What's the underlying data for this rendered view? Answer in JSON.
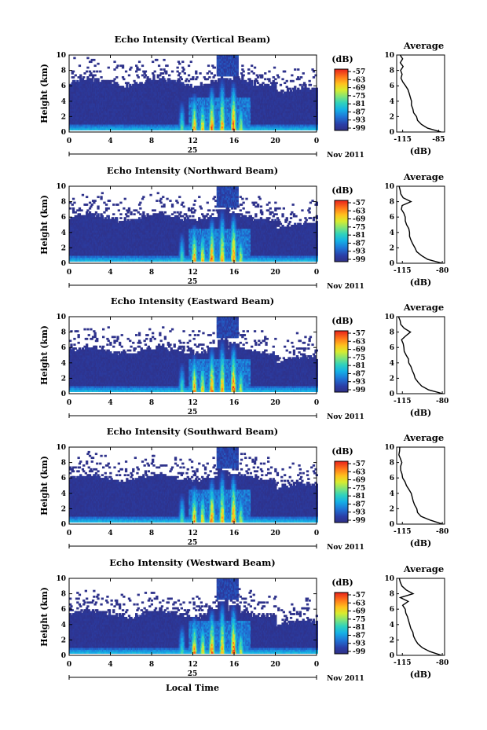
{
  "figure": {
    "xlabel": "Local Time",
    "date_label": "Nov 2011",
    "day_label": "25",
    "panel_ylabel": "Height (km)",
    "colorbar_unit": "(dB)",
    "avg_title": "Average",
    "avg_xlabel": "(dB)"
  },
  "chart_data": [
    {
      "type": "heatmap",
      "title": "Echo Intensity (Vertical Beam)",
      "ylabel": "Height (km)",
      "xlabel": "Local Time",
      "xlim": [
        0,
        24
      ],
      "xticks": [
        "0",
        "4",
        "8",
        "12",
        "16",
        "20",
        "0"
      ],
      "ylim": [
        0,
        10
      ],
      "yticks": [
        "0",
        "2",
        "4",
        "6",
        "8",
        "10"
      ],
      "colorbar": {
        "unit": "(dB)",
        "ticks": [
          "-57",
          "-63",
          "-69",
          "-75",
          "-81",
          "-87",
          "-93",
          "-99"
        ]
      },
      "profile": {
        "title": "Average",
        "xlabel": "(dB)",
        "xticks": [
          "-115",
          "-85"
        ],
        "xlim": [
          -120,
          -80
        ],
        "height_km": [
          0,
          0.5,
          1,
          1.5,
          2,
          2.5,
          3,
          3.5,
          4,
          4.5,
          5,
          5.5,
          6,
          6.5,
          7,
          7.5,
          8,
          8.5,
          9,
          9.5,
          10
        ],
        "db": [
          -82,
          -94,
          -99,
          -102,
          -104,
          -106,
          -106,
          -108,
          -107,
          -109,
          -110,
          -111,
          -113,
          -115,
          -116,
          -115,
          -117,
          -114,
          -117,
          -115,
          -117
        ]
      }
    },
    {
      "type": "heatmap",
      "title": "Echo Intensity (Northward Beam)",
      "ylabel": "Height (km)",
      "xlabel": "Local Time",
      "xlim": [
        0,
        24
      ],
      "xticks": [
        "0",
        "4",
        "8",
        "12",
        "16",
        "20",
        "0"
      ],
      "ylim": [
        0,
        10
      ],
      "yticks": [
        "0",
        "2",
        "4",
        "6",
        "8",
        "10"
      ],
      "colorbar": {
        "unit": "(dB)",
        "ticks": [
          "-57",
          "-63",
          "-69",
          "-75",
          "-81",
          "-87",
          "-93",
          "-99"
        ]
      },
      "profile": {
        "title": "Average",
        "xlabel": "(dB)",
        "xticks": [
          "-115",
          "-80"
        ],
        "xlim": [
          -120,
          -78
        ],
        "height_km": [
          0,
          0.5,
          1,
          1.5,
          2,
          2.5,
          3,
          3.5,
          4,
          4.5,
          5,
          5.5,
          6,
          6.5,
          7,
          7.5,
          8,
          8.5,
          9,
          9.5,
          10
        ],
        "db": [
          -80,
          -92,
          -99,
          -102,
          -104,
          -106,
          -108,
          -108,
          -109,
          -110,
          -111,
          -112,
          -112,
          -114,
          -116,
          -115,
          -108,
          -115,
          -116,
          -117,
          -118
        ]
      }
    },
    {
      "type": "heatmap",
      "title": "Echo Intensity (Eastward Beam)",
      "ylabel": "Height (km)",
      "xlabel": "Local Time",
      "xlim": [
        0,
        24
      ],
      "xticks": [
        "0",
        "4",
        "8",
        "12",
        "16",
        "20",
        "0"
      ],
      "ylim": [
        0,
        10
      ],
      "yticks": [
        "0",
        "2",
        "4",
        "6",
        "8",
        "10"
      ],
      "colorbar": {
        "unit": "(dB)",
        "ticks": [
          "-57",
          "-63",
          "-69",
          "-75",
          "-81",
          "-87",
          "-93",
          "-99"
        ]
      },
      "profile": {
        "title": "Average",
        "xlabel": "(dB)",
        "xticks": [
          "-115",
          "-80"
        ],
        "xlim": [
          -120,
          -78
        ],
        "height_km": [
          0,
          0.5,
          1,
          1.5,
          2,
          2.5,
          3,
          3.5,
          4,
          4.5,
          5,
          5.5,
          6,
          6.5,
          7,
          7.5,
          8,
          8.5,
          9,
          9.5,
          10
        ],
        "db": [
          -80,
          -92,
          -99,
          -102,
          -104,
          -105,
          -107,
          -108,
          -110,
          -110,
          -112,
          -113,
          -113,
          -115,
          -116,
          -112,
          -108,
          -113,
          -116,
          -117,
          -118
        ]
      }
    },
    {
      "type": "heatmap",
      "title": "Echo Intensity (Southward Beam)",
      "ylabel": "Height (km)",
      "xlabel": "Local Time",
      "xlim": [
        0,
        24
      ],
      "xticks": [
        "0",
        "4",
        "8",
        "12",
        "16",
        "20",
        "0"
      ],
      "ylim": [
        0,
        10
      ],
      "yticks": [
        "0",
        "2",
        "4",
        "6",
        "8",
        "10"
      ],
      "colorbar": {
        "unit": "(dB)",
        "ticks": [
          "-57",
          "-63",
          "-69",
          "-75",
          "-81",
          "-87",
          "-93",
          "-99"
        ]
      },
      "profile": {
        "title": "Average",
        "xlabel": "(dB)",
        "xticks": [
          "-115",
          "-80"
        ],
        "xlim": [
          -120,
          -78
        ],
        "height_km": [
          0,
          0.5,
          1,
          1.5,
          2,
          2.5,
          3,
          3.5,
          4,
          4.5,
          5,
          5.5,
          6,
          6.5,
          7,
          7.5,
          8,
          8.5,
          9,
          9.5,
          10
        ],
        "db": [
          -80,
          -91,
          -98,
          -101,
          -103,
          -105,
          -106,
          -107,
          -108,
          -109,
          -111,
          -113,
          -114,
          -116,
          -117,
          -117,
          -116,
          -117,
          -118,
          -117,
          -118
        ]
      }
    },
    {
      "type": "heatmap",
      "title": "Echo Intensity (Westward Beam)",
      "ylabel": "Height (km)",
      "xlabel": "Local Time",
      "xlim": [
        0,
        24
      ],
      "xticks": [
        "0",
        "4",
        "8",
        "12",
        "16",
        "20",
        "0"
      ],
      "ylim": [
        0,
        10
      ],
      "yticks": [
        "0",
        "2",
        "4",
        "6",
        "8",
        "10"
      ],
      "colorbar": {
        "unit": "(dB)",
        "ticks": [
          "-57",
          "-63",
          "-69",
          "-75",
          "-81",
          "-87",
          "-93",
          "-99"
        ]
      },
      "profile": {
        "title": "Average",
        "xlabel": "(dB)",
        "xticks": [
          "-115",
          "-80"
        ],
        "xlim": [
          -120,
          -78
        ],
        "height_km": [
          0,
          0.5,
          1,
          1.5,
          2,
          2.5,
          3,
          3.5,
          4,
          4.5,
          5,
          5.5,
          6,
          6.5,
          7,
          7.5,
          8,
          8.5,
          9,
          9.5,
          10
        ],
        "db": [
          -80,
          -91,
          -98,
          -101,
          -103,
          -105,
          -106,
          -107,
          -108,
          -109,
          -110,
          -112,
          -113,
          -114,
          -110,
          -116,
          -106,
          -112,
          -116,
          -117,
          -118
        ]
      }
    }
  ]
}
